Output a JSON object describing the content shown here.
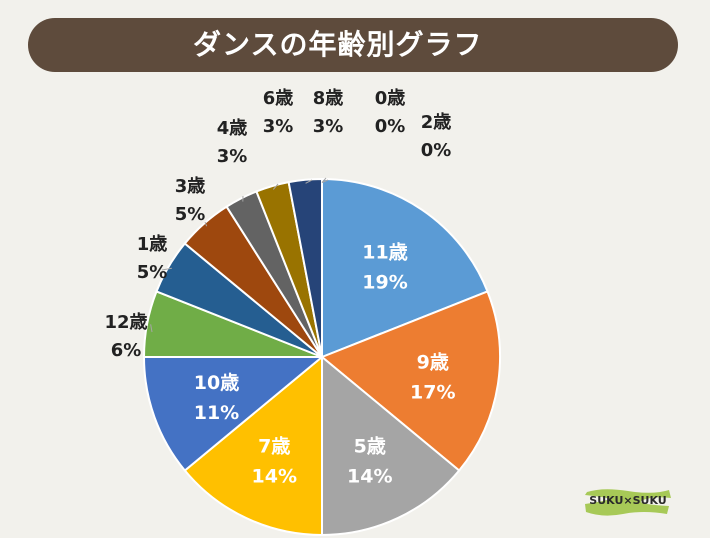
{
  "header": {
    "title": "ダンスの年齢別グラフ"
  },
  "logo": {
    "text": "SUKU×SUKU"
  },
  "chart_data": {
    "type": "pie",
    "title": "ダンスの年齢別グラフ",
    "start_angle": "12 o'clock",
    "direction": "clockwise",
    "slices": [
      {
        "name": "11歳",
        "percent": 19,
        "label": "19%",
        "color": "#5b9bd5",
        "inside": true,
        "label_color": "#ffffff"
      },
      {
        "name": "9歳",
        "percent": 17,
        "label": "17%",
        "color": "#ed7d31",
        "inside": true,
        "label_color": "#ffffff"
      },
      {
        "name": "5歳",
        "percent": 14,
        "label": "14%",
        "color": "#a5a5a5",
        "inside": true,
        "label_color": "#ffffff"
      },
      {
        "name": "7歳",
        "percent": 14,
        "label": "14%",
        "color": "#ffc000",
        "inside": true,
        "label_color": "#ffffff"
      },
      {
        "name": "10歳",
        "percent": 11,
        "label": "11%",
        "color": "#4472c4",
        "inside": true,
        "label_color": "#ffffff"
      },
      {
        "name": "12歳",
        "percent": 6,
        "label": "6%",
        "color": "#70ad47",
        "inside": false,
        "label_color": "#222222"
      },
      {
        "name": "1歳",
        "percent": 5,
        "label": "5%",
        "color": "#255e91",
        "inside": false,
        "label_color": "#222222"
      },
      {
        "name": "3歳",
        "percent": 5,
        "label": "5%",
        "color": "#9e480e",
        "inside": false,
        "label_color": "#222222"
      },
      {
        "name": "4歳",
        "percent": 3,
        "label": "3%",
        "color": "#636363",
        "inside": false,
        "label_color": "#222222"
      },
      {
        "name": "6歳",
        "percent": 3,
        "label": "3%",
        "color": "#997300",
        "inside": false,
        "label_color": "#222222"
      },
      {
        "name": "8歳",
        "percent": 3,
        "label": "3%",
        "color": "#264478",
        "inside": false,
        "label_color": "#222222"
      },
      {
        "name": "0歳",
        "percent": 0,
        "label": "0%",
        "color": "#9dc3e6",
        "inside": false,
        "label_color": "#222222"
      },
      {
        "name": "2歳",
        "percent": 0,
        "label": "0%",
        "color": "#f4b183",
        "inside": false,
        "label_color": "#222222"
      }
    ]
  }
}
